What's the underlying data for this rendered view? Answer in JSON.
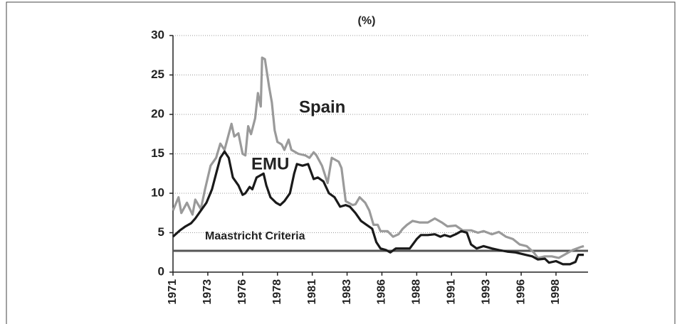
{
  "chart_data": {
    "type": "line",
    "title": "(%)",
    "xlim": [
      1971,
      2000.8
    ],
    "ylim": [
      0,
      30
    ],
    "yticks": [
      0,
      5,
      10,
      15,
      20,
      25,
      30
    ],
    "xticks": [
      1971,
      {
        "value": 1973.5,
        "label": "1973"
      },
      1976,
      {
        "value": 1978.5,
        "label": "1978"
      },
      1981,
      {
        "value": 1983.5,
        "label": "1983"
      },
      1986,
      {
        "value": 1988.5,
        "label": "1988"
      },
      1991,
      {
        "value": 1993.5,
        "label": "1993"
      },
      1996,
      {
        "value": 1998.5,
        "label": "1998"
      }
    ],
    "grid": true,
    "reference_lines": [
      {
        "label": "Maastricht Criteria",
        "value": 2.7,
        "color": "#555555"
      }
    ],
    "series": [
      {
        "name": "Spain",
        "color": "#9a9a9a",
        "x": [
          1971.0,
          1971.4,
          1971.6,
          1972.0,
          1972.4,
          1972.6,
          1973.0,
          1973.3,
          1973.7,
          1974.1,
          1974.4,
          1974.7,
          1975.0,
          1975.2,
          1975.4,
          1975.7,
          1976.0,
          1976.2,
          1976.4,
          1976.6,
          1976.9,
          1977.1,
          1977.3,
          1977.4,
          1977.6,
          1977.9,
          1978.1,
          1978.3,
          1978.5,
          1978.8,
          1979.0,
          1979.3,
          1979.5,
          1980.0,
          1980.5,
          1980.8,
          1981.1,
          1981.3,
          1981.7,
          1982.1,
          1982.4,
          1982.9,
          1983.1,
          1983.4,
          1983.9,
          1984.1,
          1984.4,
          1984.8,
          1985.1,
          1985.4,
          1985.7,
          1985.9,
          1986.4,
          1986.8,
          1987.2,
          1987.5,
          1987.8,
          1988.2,
          1988.7,
          1989.3,
          1989.8,
          1990.3,
          1990.7,
          1991.3,
          1991.8,
          1992.4,
          1992.9,
          1993.3,
          1993.9,
          1994.4,
          1994.9,
          1995.4,
          1995.9,
          1996.4,
          1996.9,
          1997.2,
          1997.7,
          1998.2,
          1998.7,
          1999.2,
          1999.7,
          2000.3,
          2000.5
        ],
        "values": [
          7.8,
          9.5,
          7.5,
          8.8,
          7.3,
          9.2,
          8.0,
          10.5,
          13.5,
          14.5,
          16.3,
          15.5,
          17.5,
          18.8,
          17.2,
          17.6,
          15.0,
          14.8,
          18.5,
          17.5,
          19.5,
          22.7,
          21.0,
          27.2,
          27.0,
          23.5,
          21.5,
          18.0,
          16.5,
          16.2,
          15.5,
          16.8,
          15.5,
          15.0,
          14.8,
          14.5,
          15.2,
          14.8,
          13.5,
          11.3,
          14.5,
          14.0,
          13.2,
          9.0,
          8.5,
          8.6,
          9.5,
          8.8,
          7.8,
          6.0,
          6.0,
          5.2,
          5.2,
          4.5,
          4.8,
          5.5,
          6.0,
          6.5,
          6.3,
          6.3,
          6.8,
          6.3,
          5.8,
          5.9,
          5.3,
          5.3,
          5.0,
          5.2,
          4.8,
          5.1,
          4.5,
          4.2,
          3.5,
          3.3,
          2.5,
          1.8,
          2.0,
          2.0,
          1.8,
          2.3,
          2.8,
          3.2,
          3.3
        ]
      },
      {
        "name": "EMU",
        "color": "#1a1a1a",
        "x": [
          1971.0,
          1971.5,
          1971.9,
          1972.3,
          1972.6,
          1973.0,
          1973.4,
          1973.8,
          1974.1,
          1974.4,
          1974.7,
          1975.0,
          1975.3,
          1975.7,
          1976.0,
          1976.2,
          1976.5,
          1976.7,
          1977.0,
          1977.2,
          1977.5,
          1977.7,
          1978.0,
          1978.4,
          1978.7,
          1979.0,
          1979.4,
          1979.7,
          1979.9,
          1980.3,
          1980.7,
          1981.1,
          1981.4,
          1981.8,
          1982.2,
          1982.6,
          1983.0,
          1983.4,
          1983.7,
          1984.1,
          1984.5,
          1984.9,
          1985.3,
          1985.6,
          1985.9,
          1986.3,
          1986.6,
          1987.0,
          1987.5,
          1988.0,
          1988.5,
          1988.8,
          1989.3,
          1989.8,
          1990.2,
          1990.5,
          1990.9,
          1991.3,
          1991.7,
          1992.1,
          1992.4,
          1992.8,
          1993.3,
          1993.9,
          1994.4,
          1995.0,
          1995.6,
          1996.3,
          1996.8,
          1997.2,
          1997.7,
          1998.0,
          1998.5,
          1999.0,
          1999.5,
          1999.9,
          2000.1,
          2000.5
        ],
        "values": [
          4.5,
          5.3,
          5.8,
          6.2,
          6.8,
          7.8,
          8.8,
          10.5,
          12.5,
          14.5,
          15.3,
          14.5,
          12.0,
          11.0,
          9.8,
          10.0,
          10.8,
          10.5,
          12.0,
          12.2,
          12.5,
          11.0,
          9.5,
          8.8,
          8.5,
          9.0,
          10.0,
          12.5,
          13.7,
          13.5,
          13.7,
          11.8,
          12.0,
          11.5,
          10.0,
          9.5,
          8.3,
          8.5,
          8.3,
          7.5,
          6.5,
          6.0,
          5.5,
          3.8,
          3.0,
          2.8,
          2.5,
          3.0,
          3.0,
          3.0,
          4.2,
          4.7,
          4.7,
          4.8,
          4.5,
          4.7,
          4.5,
          4.8,
          5.2,
          5.0,
          3.5,
          3.0,
          3.3,
          3.0,
          2.8,
          2.6,
          2.5,
          2.2,
          2.0,
          1.6,
          1.7,
          1.2,
          1.4,
          1.0,
          1.0,
          1.3,
          2.2,
          2.2
        ]
      }
    ]
  }
}
